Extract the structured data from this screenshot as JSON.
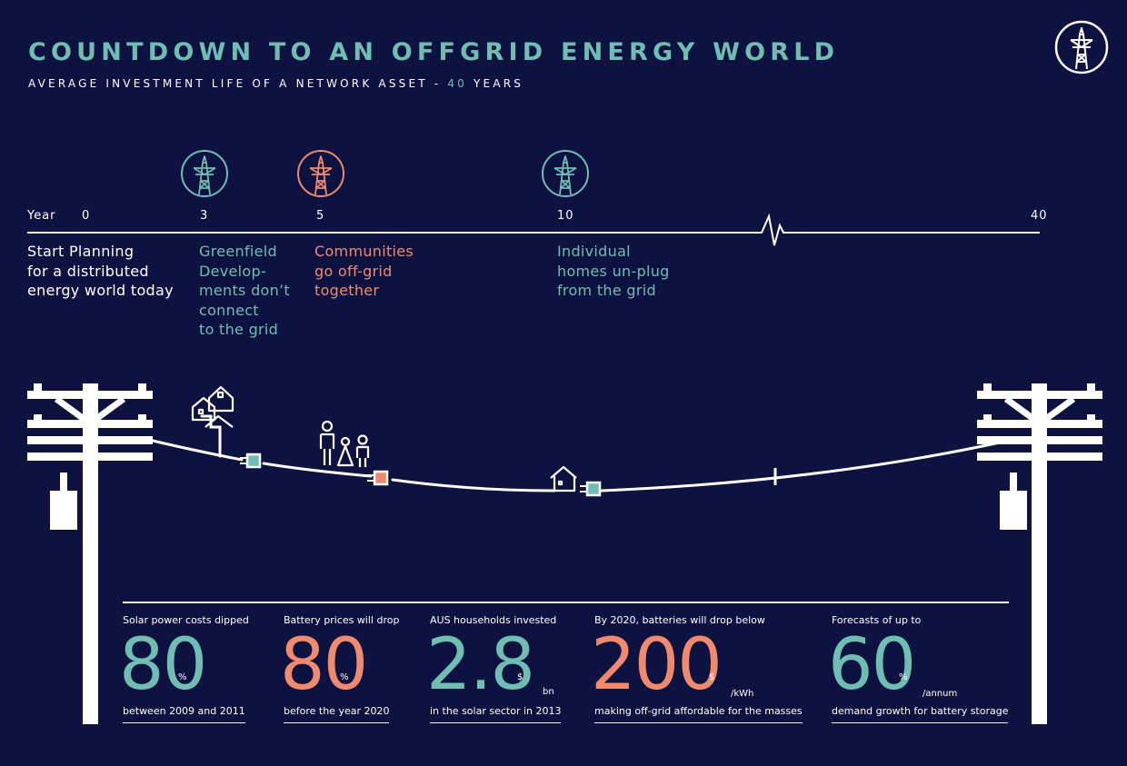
{
  "header": {
    "title": "COUNTDOWN TO AN OFFGRID ENERGY WORLD",
    "subtitle_prefix": "AVERAGE INVESTMENT LIFE OF A NETWORK ASSET - ",
    "subtitle_number": "40",
    "subtitle_suffix": " YEARS"
  },
  "timeline": {
    "year_label": "Year",
    "ticks": [
      "0",
      "3",
      "5",
      "10",
      "40"
    ]
  },
  "milestones": [
    {
      "year": "0",
      "lines": [
        "Start Planning",
        "for a distributed",
        "energy world today"
      ]
    },
    {
      "year": "3",
      "lines": [
        "Greenfield",
        "Develop-",
        "ments don’t",
        "connect",
        "to the grid"
      ]
    },
    {
      "year": "5",
      "lines": [
        "Communities",
        "go off-grid",
        "together"
      ]
    },
    {
      "year": "10",
      "lines": [
        "Individual",
        "homes un-plug",
        "from the grid"
      ]
    }
  ],
  "stats": [
    {
      "top": "Solar power costs dipped",
      "value": "80",
      "unit": "%",
      "suffix": "",
      "bottom": "between 2009 and 2011"
    },
    {
      "top": "Battery prices will drop",
      "value": "80",
      "unit": "%",
      "suffix": "",
      "bottom": "before the year 2020"
    },
    {
      "top": "AUS households invested",
      "value": "2.8",
      "unit": "$",
      "suffix": "bn",
      "bottom": "in the solar sector in 2013"
    },
    {
      "top": "By 2020, batteries will drop below",
      "value": "200",
      "unit": "$",
      "suffix": "/kWh",
      "bottom": "making off-grid affordable for the masses"
    },
    {
      "top": "Forecasts of up to",
      "value": "60",
      "unit": "%",
      "suffix": "/annum",
      "bottom": "demand growth for battery storage"
    }
  ],
  "icons": {
    "logo": "power-tower-icon",
    "milestone_icons": [
      "power-tower-icon",
      "power-tower-icon",
      "power-tower-icon"
    ],
    "people": "family-icon",
    "houses": "houses-icon",
    "house": "house-icon",
    "plug": "plug-icon",
    "pole": "utility-pole-icon"
  },
  "colors": {
    "background": "#0e1240",
    "teal": "#6fbdb3",
    "orange": "#ef8a6e",
    "white": "#ffffff"
  }
}
